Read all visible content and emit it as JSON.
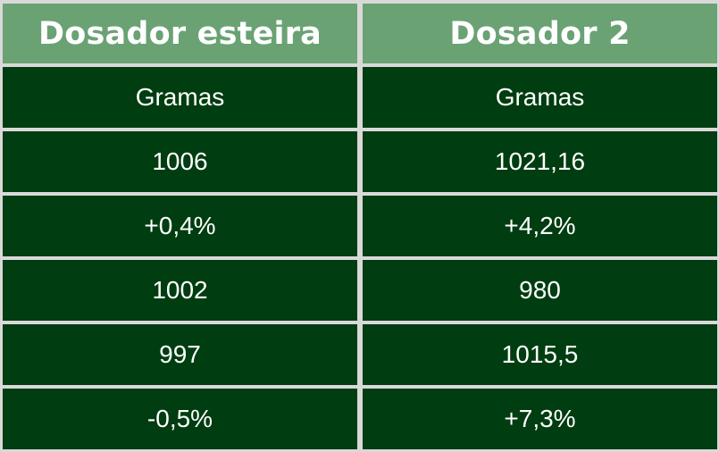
{
  "table": {
    "headers": [
      "Dosador esteira",
      "Dosador 2"
    ],
    "rows": [
      [
        "Gramas",
        "Gramas"
      ],
      [
        "1006",
        "1021,16"
      ],
      [
        "+0,4%",
        "+4,2%"
      ],
      [
        "1002",
        "980"
      ],
      [
        "997",
        "1015,5"
      ],
      [
        "-0,5%",
        "+7,3%"
      ]
    ]
  },
  "colors": {
    "header_bg": "#6aa274",
    "body_bg": "#003d10",
    "grid_lines": "#d9d9d9",
    "text": "#ffffff"
  }
}
